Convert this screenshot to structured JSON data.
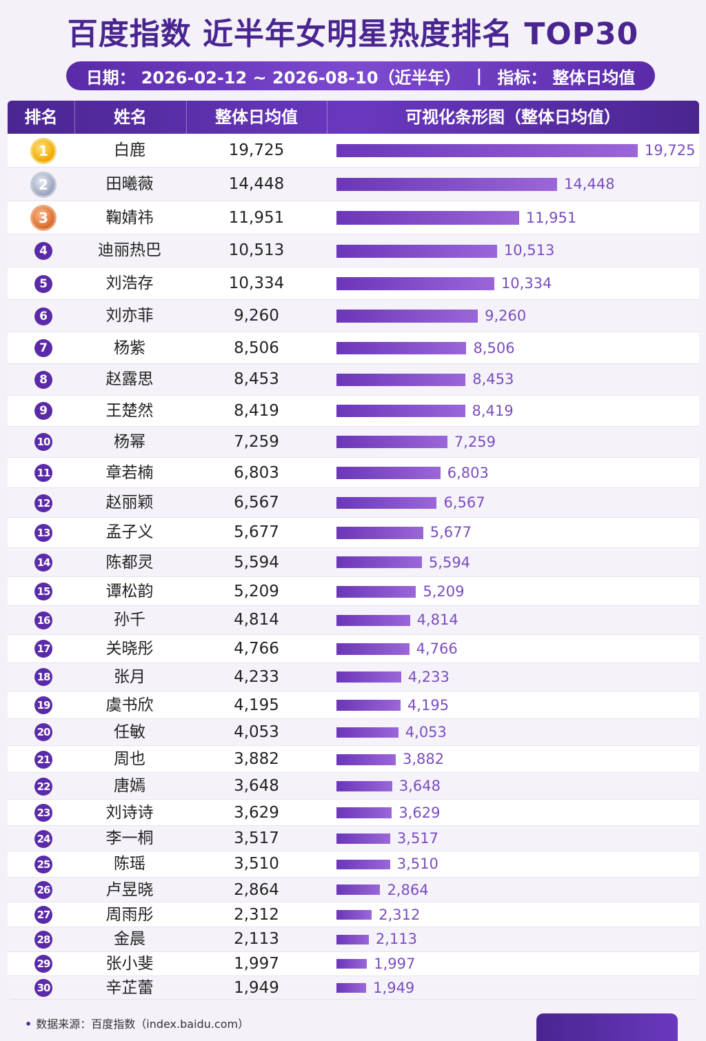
{
  "title": "百度指数 近半年女明星热度排名 TOP30",
  "subtitle": {
    "date_label": "日期：",
    "date_range": "2026-02-12 ~ 2026-08-10（近半年）",
    "divider": "|",
    "metric_label": "指标：",
    "metric": "整体日均值"
  },
  "table": {
    "headers": [
      "排名",
      "姓名",
      "整体日均值",
      "可视化条形图（整体日均值）"
    ]
  },
  "footer": {
    "source_label": "数据来源：",
    "source": "百度指数（index.baidu.com）"
  },
  "colors": {
    "accent": "#5a2aa8",
    "bar": "#7d4ad0",
    "bar_label": "#7a4cc0"
  },
  "chart_data": {
    "type": "bar",
    "orientation": "horizontal",
    "title": "百度指数 近半年女明星热度排名 TOP30",
    "xlabel": "整体日均值",
    "ylabel": "姓名",
    "xlim": [
      0,
      20000
    ],
    "grid": false,
    "ranks": [
      1,
      2,
      3,
      4,
      5,
      6,
      7,
      8,
      9,
      10,
      11,
      12,
      13,
      14,
      15,
      16,
      17,
      18,
      19,
      20,
      21,
      22,
      23,
      24,
      25,
      26,
      27,
      28,
      29,
      30
    ],
    "categories": [
      "白鹿",
      "田曦薇",
      "鞠婧祎",
      "迪丽热巴",
      "刘浩存",
      "刘亦菲",
      "杨紫",
      "赵露思",
      "王楚然",
      "杨幂",
      "章若楠",
      "赵丽颖",
      "孟子义",
      "陈都灵",
      "谭松韵",
      "孙千",
      "关晓彤",
      "张月",
      "虞书欣",
      "任敏",
      "周也",
      "唐嫣",
      "刘诗诗",
      "李一桐",
      "陈瑶",
      "卢昱晓",
      "周雨彤",
      "金晨",
      "张小斐",
      "辛芷蕾"
    ],
    "values": [
      19725,
      14448,
      11951,
      10513,
      10334,
      9260,
      8506,
      8453,
      8419,
      7259,
      6803,
      6567,
      5677,
      5594,
      5209,
      4814,
      4766,
      4233,
      4195,
      4053,
      3882,
      3648,
      3629,
      3517,
      3510,
      2864,
      2312,
      2113,
      1997,
      1949
    ],
    "value_labels": [
      "19,725",
      "14,448",
      "11,951",
      "10,513",
      "10,334",
      "9,260",
      "8,506",
      "8,453",
      "8,419",
      "7,259",
      "6,803",
      "6,567",
      "5,677",
      "5,594",
      "5,209",
      "4,814",
      "4,766",
      "4,233",
      "4,195",
      "4,053",
      "3,882",
      "3,648",
      "3,629",
      "3,517",
      "3,510",
      "2,864",
      "2,312",
      "2,113",
      "1,997",
      "1,949"
    ]
  }
}
